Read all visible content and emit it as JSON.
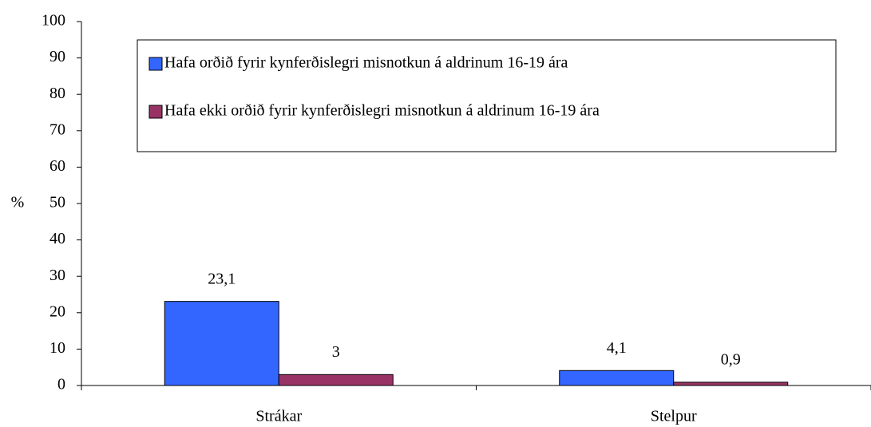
{
  "chart_data": {
    "type": "bar",
    "y_label": "%",
    "categories": [
      "Strákar",
      "Stelpur"
    ],
    "series": [
      {
        "name": "Hafa orðið fyrir kynferðislegri misnotkun á aldrinum 16-19 ára",
        "color": "#3366ff",
        "values": [
          23.1,
          4.1
        ],
        "value_labels": [
          "23,1",
          "4,1"
        ]
      },
      {
        "name": "Hafa ekki orðið fyrir kynferðislegri misnotkun á aldrinum 16-19 ára",
        "color": "#993366",
        "values": [
          3,
          0.9
        ],
        "value_labels": [
          "3",
          "0,9"
        ]
      }
    ],
    "ylim": [
      0,
      100
    ],
    "yticks": [
      0,
      10,
      20,
      30,
      40,
      50,
      60,
      70,
      80,
      90,
      100
    ],
    "grid": false,
    "legend": "top"
  }
}
